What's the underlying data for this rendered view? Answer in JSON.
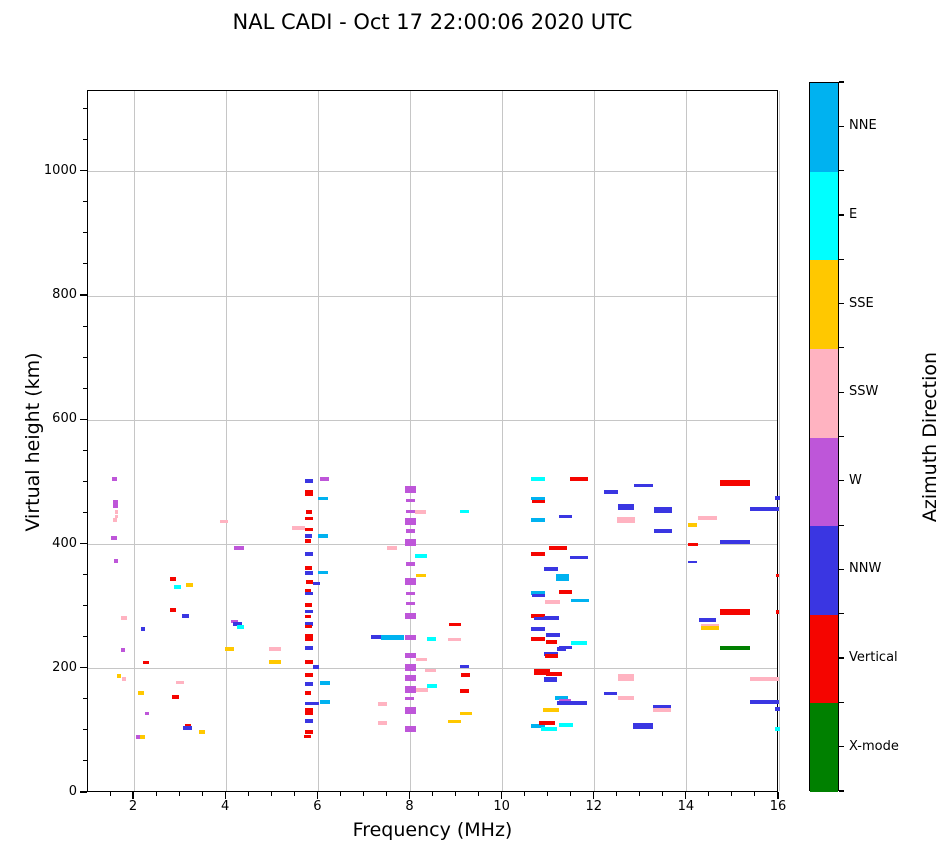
{
  "title": "NAL CADI - Oct 17 22:00:06 2020 UTC",
  "chart_data": {
    "type": "scatter",
    "title": "NAL CADI - Oct 17 22:00:06 2020 UTC",
    "xlabel": "Frequency (MHz)",
    "ylabel": "Virtual height (km)",
    "xlim": [
      1,
      16
    ],
    "ylim": [
      0,
      1130
    ],
    "x_ticks": [
      2,
      4,
      6,
      8,
      10,
      12,
      14,
      16
    ],
    "y_ticks": [
      0,
      200,
      400,
      600,
      800,
      1000
    ],
    "x_minor_step": 0.5,
    "y_minor_step": 50,
    "grid": true,
    "grid_color": "#c6c6c6",
    "marker": "horizontal-dash",
    "default_dash_width_mhz": 0.2,
    "default_dash_height_km": 6,
    "colorbar": {
      "label": "Azimuth Direction",
      "categories_bottom_to_top": [
        {
          "key": "X",
          "label": "X-mode",
          "color": "#008000"
        },
        {
          "key": "V",
          "label": "Vertical",
          "color": "#f50500"
        },
        {
          "key": "NNW",
          "label": "NNW",
          "color": "#3a36e2"
        },
        {
          "key": "W",
          "label": "W",
          "color": "#be56d9"
        },
        {
          "key": "SSW",
          "label": "SSW",
          "color": "#ffb3c1"
        },
        {
          "key": "SSE",
          "label": "SSE",
          "color": "#ffc800"
        },
        {
          "key": "E",
          "label": "E",
          "color": "#00ffff"
        },
        {
          "key": "NNE",
          "label": "NNE",
          "color": "#00b2f0"
        }
      ]
    },
    "points_format": [
      "freq_mhz",
      "height_km",
      "direction",
      "dash_width_mhz",
      "dash_height_km"
    ],
    "points": [
      [
        1.57,
        505,
        "W",
        0.1
      ],
      [
        1.6,
        468,
        "W",
        0.12
      ],
      [
        1.6,
        462,
        "W",
        0.12
      ],
      [
        1.62,
        452,
        "SSW",
        0.08
      ],
      [
        1.62,
        445,
        "SSW",
        0.08
      ],
      [
        1.59,
        440,
        "SSW",
        0.1
      ],
      [
        1.57,
        411,
        "W",
        0.12
      ],
      [
        1.61,
        374,
        "W",
        0.08
      ],
      [
        1.78,
        282,
        "SSW",
        0.12
      ],
      [
        1.76,
        230,
        "W",
        0.1
      ],
      [
        1.67,
        188,
        "SSE",
        0.1
      ],
      [
        1.78,
        184,
        "SSW",
        0.1
      ],
      [
        2.19,
        264,
        "NNW",
        0.1
      ],
      [
        2.26,
        210,
        "V",
        0.12
      ],
      [
        2.15,
        161,
        "SSE",
        0.12
      ],
      [
        2.28,
        128,
        "W",
        0.1
      ],
      [
        2.09,
        90,
        "W",
        0.1
      ],
      [
        2.18,
        90,
        "SSE",
        0.12
      ],
      [
        2.85,
        345,
        "V",
        0.12
      ],
      [
        2.94,
        332,
        "E",
        0.15
      ],
      [
        3.2,
        335,
        "SSE",
        0.15
      ],
      [
        2.85,
        295,
        "V",
        0.12
      ],
      [
        3.12,
        285,
        "NNW",
        0.15
      ],
      [
        3.0,
        178,
        "SSW",
        0.18
      ],
      [
        2.9,
        154,
        "V",
        0.15
      ],
      [
        3.17,
        108,
        "V",
        0.12
      ],
      [
        3.16,
        105,
        "NNW",
        0.18
      ],
      [
        3.48,
        98,
        "SSE",
        0.12
      ],
      [
        3.95,
        437,
        "SSW",
        0.18
      ],
      [
        4.28,
        394,
        "W",
        0.22
      ],
      [
        4.18,
        276,
        "W",
        0.15
      ],
      [
        4.24,
        272,
        "NNW",
        0.2
      ],
      [
        4.31,
        267,
        "E",
        0.15
      ],
      [
        4.08,
        232,
        "SSE",
        0.2
      ],
      [
        5.06,
        232,
        "SSW",
        0.25
      ],
      [
        5.06,
        211,
        "SSE",
        0.25
      ],
      [
        5.57,
        426,
        "SSW",
        0.3
      ],
      [
        5.8,
        502,
        "NNW",
        0.17
      ],
      [
        5.8,
        483,
        "V",
        0.17,
        11
      ],
      [
        5.8,
        452,
        "V",
        0.13
      ],
      [
        5.8,
        442,
        "V",
        0.17
      ],
      [
        5.8,
        424,
        "V",
        0.17
      ],
      [
        5.78,
        414,
        "NNW",
        0.15
      ],
      [
        5.78,
        406,
        "V",
        0.13
      ],
      [
        5.8,
        385,
        "NNW",
        0.17
      ],
      [
        5.78,
        362,
        "V",
        0.15
      ],
      [
        5.8,
        354,
        "NNW",
        0.17
      ],
      [
        5.8,
        340,
        "V",
        0.15
      ],
      [
        5.97,
        337,
        "NNW",
        0.15
      ],
      [
        5.78,
        326,
        "V",
        0.13
      ],
      [
        5.8,
        321,
        "NNW",
        0.17
      ],
      [
        5.78,
        303,
        "V",
        0.15
      ],
      [
        5.8,
        292,
        "NNW",
        0.17
      ],
      [
        5.78,
        284,
        "V",
        0.13
      ],
      [
        5.8,
        272,
        "NNW",
        0.17
      ],
      [
        5.79,
        268,
        "V",
        0.15
      ],
      [
        5.8,
        250,
        "V",
        0.17,
        11
      ],
      [
        5.8,
        233,
        "NNW",
        0.17
      ],
      [
        5.8,
        211,
        "V",
        0.17
      ],
      [
        5.95,
        203,
        "NNW",
        0.15
      ],
      [
        5.8,
        190,
        "V",
        0.17
      ],
      [
        5.8,
        176,
        "NNW",
        0.17
      ],
      [
        5.78,
        161,
        "V",
        0.13
      ],
      [
        5.87,
        144,
        "NNW",
        0.3
      ],
      [
        5.8,
        131,
        "V",
        0.17,
        11
      ],
      [
        5.8,
        116,
        "NNW",
        0.17
      ],
      [
        5.8,
        98,
        "V",
        0.17
      ],
      [
        5.76,
        91,
        "V",
        0.15
      ],
      [
        6.13,
        506,
        "W",
        0.2
      ],
      [
        6.1,
        474,
        "NNE",
        0.22
      ],
      [
        6.1,
        414,
        "NNE",
        0.2
      ],
      [
        6.1,
        355,
        "NNE",
        0.22
      ],
      [
        6.15,
        177,
        "NNE",
        0.22
      ],
      [
        6.15,
        147,
        "NNE",
        0.22
      ],
      [
        7.25,
        251,
        "NNW",
        0.2
      ],
      [
        7.62,
        251,
        "NNE",
        0.5,
        8
      ],
      [
        7.4,
        143,
        "SSW",
        0.2
      ],
      [
        7.4,
        113,
        "SSW",
        0.2
      ],
      [
        7.6,
        394,
        "SSW",
        0.22
      ],
      [
        8.0,
        489,
        "W",
        0.22,
        11
      ],
      [
        8.0,
        471,
        "W",
        0.2
      ],
      [
        8.0,
        453,
        "W",
        0.2
      ],
      [
        8.0,
        437,
        "W",
        0.22,
        11
      ],
      [
        8.0,
        422,
        "W",
        0.2
      ],
      [
        8.0,
        403,
        "W",
        0.22,
        11
      ],
      [
        8.0,
        369,
        "W",
        0.2
      ],
      [
        8.0,
        340,
        "W",
        0.22,
        11
      ],
      [
        8.0,
        321,
        "W",
        0.2
      ],
      [
        8.0,
        305,
        "W",
        0.2
      ],
      [
        8.0,
        285,
        "W",
        0.22,
        11
      ],
      [
        8.0,
        250,
        "W",
        0.22,
        9
      ],
      [
        8.0,
        221,
        "W",
        0.22,
        9
      ],
      [
        8.0,
        202,
        "W",
        0.22,
        11
      ],
      [
        8.0,
        185,
        "W",
        0.22,
        9
      ],
      [
        8.0,
        167,
        "W",
        0.22,
        11
      ],
      [
        7.98,
        152,
        "W",
        0.18
      ],
      [
        8.0,
        133,
        "W",
        0.22,
        11
      ],
      [
        8.0,
        103,
        "W",
        0.22,
        11
      ],
      [
        8.22,
        452,
        "SSW",
        0.25
      ],
      [
        8.23,
        382,
        "E",
        0.25
      ],
      [
        8.23,
        350,
        "SSE",
        0.22
      ],
      [
        8.24,
        215,
        "SSW",
        0.25
      ],
      [
        8.44,
        197,
        "SSW",
        0.25
      ],
      [
        8.25,
        166,
        "SSW",
        0.28
      ],
      [
        8.47,
        172,
        "E",
        0.22
      ],
      [
        8.46,
        248,
        "E",
        0.2
      ],
      [
        8.97,
        271,
        "V",
        0.25
      ],
      [
        8.96,
        247,
        "SSW",
        0.27
      ],
      [
        9.17,
        453,
        "E",
        0.2
      ],
      [
        9.17,
        204,
        "NNW",
        0.2,
        4
      ],
      [
        9.2,
        190,
        "V",
        0.2
      ],
      [
        9.17,
        164,
        "V",
        0.2
      ],
      [
        9.2,
        128,
        "SSE",
        0.25
      ],
      [
        8.96,
        115,
        "SSE",
        0.27
      ],
      [
        10.77,
        505,
        "E",
        0.3
      ],
      [
        10.77,
        474,
        "NNE",
        0.3
      ],
      [
        10.78,
        469,
        "V",
        0.28
      ],
      [
        10.77,
        439,
        "NNE",
        0.3
      ],
      [
        10.77,
        385,
        "V",
        0.3
      ],
      [
        10.77,
        322,
        "NNE",
        0.3
      ],
      [
        10.78,
        318,
        "NNW",
        0.3
      ],
      [
        10.77,
        285,
        "V",
        0.3
      ],
      [
        10.83,
        281,
        "NNW",
        0.3
      ],
      [
        10.77,
        264,
        "NNW",
        0.3
      ],
      [
        10.77,
        248,
        "V",
        0.3
      ],
      [
        10.77,
        108,
        "NNE",
        0.3
      ],
      [
        10.97,
        113,
        "V",
        0.35
      ],
      [
        11.0,
        103,
        "E",
        0.35
      ],
      [
        11.05,
        361,
        "NNW",
        0.3
      ],
      [
        11.3,
        347,
        "NNE",
        0.28,
        10
      ],
      [
        11.08,
        308,
        "SSW",
        0.32
      ],
      [
        11.06,
        282,
        "NNW",
        0.32
      ],
      [
        11.1,
        254,
        "NNW",
        0.3
      ],
      [
        11.06,
        243,
        "V",
        0.25
      ],
      [
        11.37,
        445,
        "NNW",
        0.27
      ],
      [
        11.66,
        505,
        "V",
        0.38
      ],
      [
        11.2,
        394,
        "V",
        0.4
      ],
      [
        11.66,
        379,
        "NNW",
        0.38
      ],
      [
        11.37,
        324,
        "V",
        0.27
      ],
      [
        11.68,
        310,
        "NNE",
        0.38
      ],
      [
        11.37,
        234,
        "NNW",
        0.28
      ],
      [
        11.05,
        224,
        "NNW",
        0.32
      ],
      [
        11.06,
        220,
        "V",
        0.3
      ],
      [
        11.66,
        242,
        "E",
        0.35
      ],
      [
        11.28,
        232,
        "NNW",
        0.2
      ],
      [
        10.85,
        195,
        "V",
        0.35,
        10
      ],
      [
        11.12,
        192,
        "V",
        0.35
      ],
      [
        11.04,
        184,
        "NNW",
        0.28,
        4
      ],
      [
        11.04,
        180,
        "NNW",
        0.28,
        4
      ],
      [
        11.28,
        153,
        "NNE",
        0.27
      ],
      [
        11.35,
        148,
        "W",
        0.27
      ],
      [
        11.5,
        145,
        "NNW",
        0.65
      ],
      [
        11.06,
        134,
        "SSE",
        0.35
      ],
      [
        11.37,
        110,
        "E",
        0.3
      ],
      [
        12.36,
        484,
        "NNW",
        0.3
      ],
      [
        13.06,
        495,
        "NNW",
        0.42
      ],
      [
        12.68,
        461,
        "NNW",
        0.33,
        10
      ],
      [
        13.48,
        455,
        "NNW",
        0.4,
        10
      ],
      [
        12.68,
        440,
        "SSW",
        0.38,
        10
      ],
      [
        13.48,
        422,
        "NNW",
        0.4
      ],
      [
        12.68,
        186,
        "SSW",
        0.36,
        11
      ],
      [
        12.34,
        160,
        "NNW",
        0.27,
        4
      ],
      [
        12.68,
        153,
        "SSW",
        0.35
      ],
      [
        13.05,
        108,
        "NNW",
        0.42,
        9
      ],
      [
        13.46,
        139,
        "NNW",
        0.4
      ],
      [
        13.46,
        134,
        "SSW",
        0.4
      ],
      [
        14.13,
        431,
        "SSE",
        0.2
      ],
      [
        14.45,
        443,
        "SSW",
        0.4
      ],
      [
        14.13,
        400,
        "V",
        0.22
      ],
      [
        14.12,
        372,
        "NNW",
        0.2,
        4
      ],
      [
        14.45,
        278,
        "NNW",
        0.37
      ],
      [
        14.5,
        269,
        "SSW",
        0.4
      ],
      [
        14.5,
        266,
        "SSE",
        0.4
      ],
      [
        15.05,
        499,
        "V",
        0.65,
        10
      ],
      [
        15.68,
        457,
        "NNW",
        0.62
      ],
      [
        15.05,
        404,
        "NNW",
        0.65
      ],
      [
        15.05,
        291,
        "V",
        0.65,
        10
      ],
      [
        15.05,
        233,
        "X",
        0.65
      ],
      [
        15.68,
        184,
        "SSW",
        0.62
      ],
      [
        15.68,
        146,
        "NNW",
        0.62
      ],
      [
        15.97,
        475,
        "NNW",
        0.1
      ],
      [
        15.97,
        350,
        "V",
        0.08
      ],
      [
        15.97,
        291,
        "V",
        0.08
      ],
      [
        15.97,
        135,
        "NNW",
        0.1
      ],
      [
        15.97,
        103,
        "E",
        0.1
      ]
    ]
  }
}
